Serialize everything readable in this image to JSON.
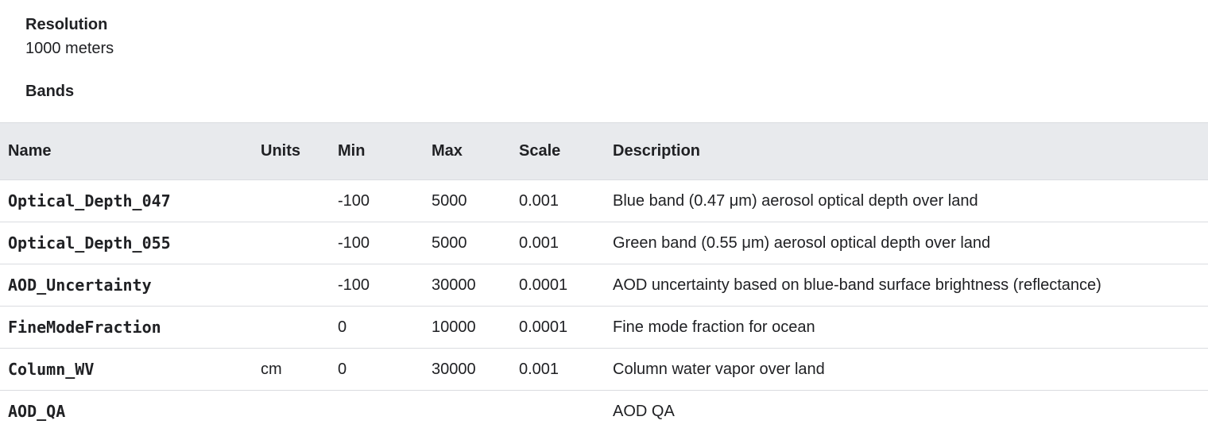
{
  "resolution": {
    "label": "Resolution",
    "value": "1000 meters"
  },
  "bands": {
    "label": "Bands",
    "columns": {
      "name": "Name",
      "units": "Units",
      "min": "Min",
      "max": "Max",
      "scale": "Scale",
      "description": "Description"
    },
    "rows": [
      {
        "name": "Optical_Depth_047",
        "units": "",
        "min": "-100",
        "max": "5000",
        "scale": "0.001",
        "description": "Blue band (0.47 μm) aerosol optical depth over land"
      },
      {
        "name": "Optical_Depth_055",
        "units": "",
        "min": "-100",
        "max": "5000",
        "scale": "0.001",
        "description": "Green band (0.55 μm) aerosol optical depth over land"
      },
      {
        "name": "AOD_Uncertainty",
        "units": "",
        "min": "-100",
        "max": "30000",
        "scale": "0.0001",
        "description": "AOD uncertainty based on blue-band surface brightness (reflectance)"
      },
      {
        "name": "FineModeFraction",
        "units": "",
        "min": "0",
        "max": "10000",
        "scale": "0.0001",
        "description": "Fine mode fraction for ocean"
      },
      {
        "name": "Column_WV",
        "units": "cm",
        "min": "0",
        "max": "30000",
        "scale": "0.001",
        "description": "Column water vapor over land"
      },
      {
        "name": "AOD_QA",
        "units": "",
        "min": "",
        "max": "",
        "scale": "",
        "description": "AOD QA"
      }
    ]
  }
}
